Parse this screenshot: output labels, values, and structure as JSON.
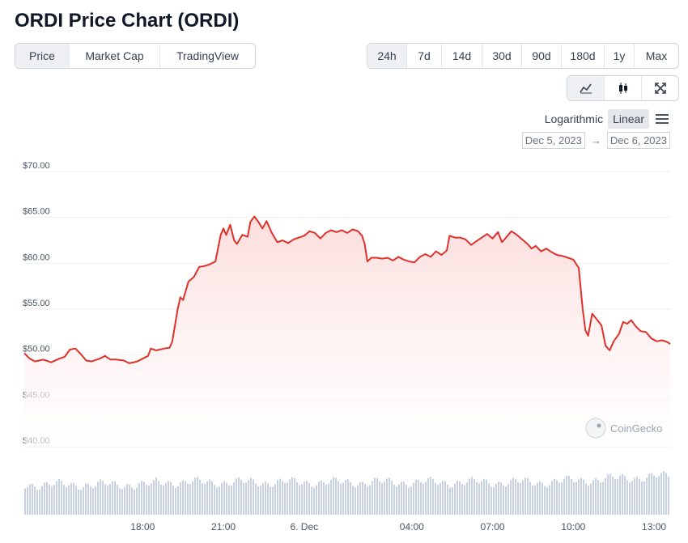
{
  "title": "ORDI Price Chart (ORDI)",
  "view_tabs": [
    "Price",
    "Market Cap",
    "TradingView"
  ],
  "view_active": "Price",
  "range_tabs": [
    "24h",
    "7d",
    "14d",
    "30d",
    "90d",
    "180d",
    "1y",
    "Max"
  ],
  "range_active": "24h",
  "tools": [
    "line-chart-icon",
    "candlestick-icon",
    "fullscreen-icon"
  ],
  "scale": {
    "logarithmic": "Logarithmic",
    "linear": "Linear",
    "active": "Linear"
  },
  "date_range": {
    "from": "Dec 5, 2023",
    "arrow": "→",
    "to": "Dec 6, 2023"
  },
  "watermark": "CoinGecko",
  "colors": {
    "line": "#e0302a",
    "fill": "#fbdcdb",
    "volume": "#c8d1e2",
    "grid": "#eceef2"
  },
  "chart_data": {
    "type": "area",
    "ylim": [
      40,
      70
    ],
    "y_ticks": [
      70,
      65,
      60,
      55,
      50,
      45,
      40
    ],
    "y_tick_labels": [
      "$70.00",
      "$65.00",
      "$60.00",
      "$55.00",
      "$50.00",
      "$45.00",
      "$40.00"
    ],
    "x_ticks": [
      {
        "label": "18:00",
        "h": 18
      },
      {
        "label": "21:00",
        "h": 21
      },
      {
        "label": "6. Dec",
        "h": 24
      },
      {
        "label": "04:00",
        "h": 28
      },
      {
        "label": "07:00",
        "h": 31
      },
      {
        "label": "10:00",
        "h": 34
      },
      {
        "label": "13:00",
        "h": 37
      }
    ],
    "x_range": [
      13.6,
      37.6
    ],
    "series": [
      {
        "values": [
          [
            13.6,
            50.2
          ],
          [
            13.8,
            49.6
          ],
          [
            14.0,
            49.3
          ],
          [
            14.3,
            49.5
          ],
          [
            14.6,
            49.2
          ],
          [
            14.9,
            49.6
          ],
          [
            15.1,
            49.8
          ],
          [
            15.3,
            50.6
          ],
          [
            15.5,
            50.7
          ],
          [
            15.7,
            50.1
          ],
          [
            15.9,
            49.4
          ],
          [
            16.1,
            49.3
          ],
          [
            16.4,
            49.6
          ],
          [
            16.6,
            49.9
          ],
          [
            16.8,
            49.5
          ],
          [
            17.0,
            49.5
          ],
          [
            17.3,
            49.4
          ],
          [
            17.5,
            49.1
          ],
          [
            17.8,
            49.3
          ],
          [
            18.0,
            49.6
          ],
          [
            18.2,
            49.9
          ],
          [
            18.3,
            50.7
          ],
          [
            18.5,
            50.5
          ],
          [
            18.8,
            50.7
          ],
          [
            19.0,
            50.8
          ],
          [
            19.1,
            51.5
          ],
          [
            19.3,
            55.0
          ],
          [
            19.4,
            56.3
          ],
          [
            19.5,
            56.0
          ],
          [
            19.7,
            58.0
          ],
          [
            19.9,
            58.5
          ],
          [
            20.1,
            59.6
          ],
          [
            20.3,
            59.7
          ],
          [
            20.5,
            59.9
          ],
          [
            20.7,
            60.2
          ],
          [
            20.9,
            63.1
          ],
          [
            21.0,
            63.8
          ],
          [
            21.1,
            63.1
          ],
          [
            21.25,
            64.2
          ],
          [
            21.4,
            62.5
          ],
          [
            21.5,
            62.1
          ],
          [
            21.7,
            63.1
          ],
          [
            21.9,
            62.9
          ],
          [
            22.0,
            64.5
          ],
          [
            22.15,
            65.1
          ],
          [
            22.3,
            64.5
          ],
          [
            22.45,
            63.8
          ],
          [
            22.6,
            64.6
          ],
          [
            22.8,
            63.3
          ],
          [
            23.0,
            62.3
          ],
          [
            23.2,
            62.5
          ],
          [
            23.4,
            62.2
          ],
          [
            23.6,
            62.6
          ],
          [
            23.8,
            62.8
          ],
          [
            24.0,
            63.0
          ],
          [
            24.2,
            63.5
          ],
          [
            24.4,
            63.3
          ],
          [
            24.6,
            62.7
          ],
          [
            24.8,
            63.3
          ],
          [
            25.0,
            63.6
          ],
          [
            25.2,
            63.4
          ],
          [
            25.4,
            63.6
          ],
          [
            25.6,
            63.3
          ],
          [
            25.8,
            63.7
          ],
          [
            26.0,
            63.5
          ],
          [
            26.15,
            63.0
          ],
          [
            26.25,
            62.1
          ],
          [
            26.35,
            60.2
          ],
          [
            26.5,
            60.6
          ],
          [
            26.7,
            60.6
          ],
          [
            26.9,
            60.5
          ],
          [
            27.1,
            60.6
          ],
          [
            27.3,
            60.3
          ],
          [
            27.5,
            60.7
          ],
          [
            27.7,
            60.4
          ],
          [
            27.9,
            60.2
          ],
          [
            28.1,
            60.1
          ],
          [
            28.3,
            60.7
          ],
          [
            28.5,
            61.0
          ],
          [
            28.7,
            60.7
          ],
          [
            28.9,
            61.3
          ],
          [
            29.1,
            60.9
          ],
          [
            29.3,
            61.4
          ],
          [
            29.4,
            63.0
          ],
          [
            29.6,
            62.8
          ],
          [
            29.8,
            62.8
          ],
          [
            30.0,
            62.6
          ],
          [
            30.2,
            62.0
          ],
          [
            30.4,
            62.4
          ],
          [
            30.6,
            62.8
          ],
          [
            30.8,
            63.2
          ],
          [
            31.0,
            62.7
          ],
          [
            31.2,
            63.4
          ],
          [
            31.35,
            62.3
          ],
          [
            31.5,
            62.8
          ],
          [
            31.7,
            63.5
          ],
          [
            31.9,
            63.1
          ],
          [
            32.1,
            62.6
          ],
          [
            32.3,
            62.1
          ],
          [
            32.45,
            61.6
          ],
          [
            32.6,
            61.9
          ],
          [
            32.8,
            61.3
          ],
          [
            33.0,
            61.6
          ],
          [
            33.2,
            61.2
          ],
          [
            33.4,
            60.9
          ],
          [
            33.6,
            60.8
          ],
          [
            33.8,
            60.6
          ],
          [
            34.0,
            60.4
          ],
          [
            34.2,
            59.5
          ],
          [
            34.35,
            55.0
          ],
          [
            34.45,
            52.7
          ],
          [
            34.55,
            52.1
          ],
          [
            34.7,
            54.5
          ],
          [
            34.9,
            53.8
          ],
          [
            35.05,
            53.2
          ],
          [
            35.2,
            51.0
          ],
          [
            35.35,
            50.5
          ],
          [
            35.5,
            51.5
          ],
          [
            35.7,
            52.3
          ],
          [
            35.85,
            53.6
          ],
          [
            36.0,
            53.4
          ],
          [
            36.15,
            53.8
          ],
          [
            36.3,
            53.2
          ],
          [
            36.5,
            52.6
          ],
          [
            36.7,
            52.5
          ],
          [
            36.9,
            51.8
          ],
          [
            37.1,
            51.5
          ],
          [
            37.3,
            51.6
          ],
          [
            37.5,
            51.4
          ],
          [
            37.6,
            51.2
          ]
        ]
      }
    ]
  }
}
